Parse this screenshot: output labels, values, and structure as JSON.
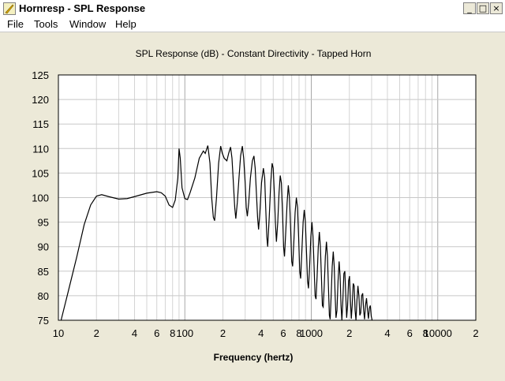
{
  "window": {
    "title": "Hornresp - SPL Response",
    "minimize": "_",
    "maximize": "□",
    "close": "×"
  },
  "menu": [
    {
      "label": "File"
    },
    {
      "label": "Tools"
    },
    {
      "label": "Window"
    },
    {
      "label": "Help"
    }
  ],
  "chart_data": {
    "type": "line",
    "title": "SPL Response (dB) - Constant Directivity - Tapped Horn",
    "xlabel": "Frequency (hertz)",
    "ylabel": "",
    "x_scale": "log",
    "xlim": [
      10,
      20000
    ],
    "ylim": [
      75,
      125
    ],
    "grid": true,
    "y_ticks": [
      125,
      120,
      115,
      110,
      105,
      100,
      95,
      90,
      85,
      80,
      75
    ],
    "x_tick_labels": [
      {
        "f": 10,
        "label": "10"
      },
      {
        "f": 20,
        "label": "2"
      },
      {
        "f": 40,
        "label": "4"
      },
      {
        "f": 60,
        "label": "6"
      },
      {
        "f": 80,
        "label": "8"
      },
      {
        "f": 100,
        "label": "100"
      },
      {
        "f": 200,
        "label": "2"
      },
      {
        "f": 400,
        "label": "4"
      },
      {
        "f": 600,
        "label": "6"
      },
      {
        "f": 800,
        "label": "8"
      },
      {
        "f": 1000,
        "label": "1000"
      },
      {
        "f": 2000,
        "label": "2"
      },
      {
        "f": 4000,
        "label": "4"
      },
      {
        "f": 6000,
        "label": "6"
      },
      {
        "f": 8000,
        "label": "8"
      },
      {
        "f": 10000,
        "label": "10000"
      },
      {
        "f": 20000,
        "label": "2"
      }
    ],
    "series": [
      {
        "color": "#000000",
        "points": [
          [
            10.5,
            75
          ],
          [
            12,
            81
          ],
          [
            14,
            88
          ],
          [
            16,
            94.5
          ],
          [
            18,
            98.5
          ],
          [
            20,
            100.3
          ],
          [
            22,
            100.6
          ],
          [
            25,
            100.2
          ],
          [
            30,
            99.7
          ],
          [
            35,
            99.8
          ],
          [
            40,
            100.2
          ],
          [
            50,
            100.9
          ],
          [
            60,
            101.2
          ],
          [
            65,
            101
          ],
          [
            70,
            100.3
          ],
          [
            75,
            98.5
          ],
          [
            80,
            98
          ],
          [
            84,
            99.5
          ],
          [
            88,
            104
          ],
          [
            90,
            110
          ],
          [
            92,
            108
          ],
          [
            95,
            102
          ],
          [
            100,
            99.8
          ],
          [
            105,
            99.6
          ],
          [
            110,
            101
          ],
          [
            120,
            104
          ],
          [
            130,
            108
          ],
          [
            140,
            109.5
          ],
          [
            145,
            109
          ],
          [
            152,
            110.6
          ],
          [
            158,
            107
          ],
          [
            163,
            100
          ],
          [
            168,
            96
          ],
          [
            172,
            95.3
          ],
          [
            178,
            100
          ],
          [
            185,
            107
          ],
          [
            192,
            110.5
          ],
          [
            198,
            109
          ],
          [
            205,
            108
          ],
          [
            215,
            107.5
          ],
          [
            222,
            109
          ],
          [
            230,
            110.3
          ],
          [
            236,
            108
          ],
          [
            242,
            103
          ],
          [
            248,
            98
          ],
          [
            253,
            95.7
          ],
          [
            260,
            99
          ],
          [
            268,
            104
          ],
          [
            276,
            108.5
          ],
          [
            285,
            110.5
          ],
          [
            292,
            108
          ],
          [
            300,
            103
          ],
          [
            306,
            98
          ],
          [
            312,
            96.2
          ],
          [
            320,
            99
          ],
          [
            330,
            104
          ],
          [
            342,
            107.5
          ],
          [
            352,
            108.5
          ],
          [
            360,
            106
          ],
          [
            368,
            101
          ],
          [
            376,
            96
          ],
          [
            383,
            93.5
          ],
          [
            392,
            97
          ],
          [
            404,
            103
          ],
          [
            418,
            106
          ],
          [
            428,
            104
          ],
          [
            436,
            98
          ],
          [
            445,
            92
          ],
          [
            452,
            90
          ],
          [
            465,
            96
          ],
          [
            478,
            103
          ],
          [
            490,
            107
          ],
          [
            500,
            106
          ],
          [
            510,
            101
          ],
          [
            520,
            95
          ],
          [
            530,
            91
          ],
          [
            543,
            95
          ],
          [
            556,
            101
          ],
          [
            568,
            104.5
          ],
          [
            580,
            103
          ],
          [
            592,
            97
          ],
          [
            604,
            90
          ],
          [
            614,
            88
          ],
          [
            628,
            93
          ],
          [
            644,
            99
          ],
          [
            658,
            102.5
          ],
          [
            672,
            100
          ],
          [
            686,
            94
          ],
          [
            700,
            87
          ],
          [
            712,
            86
          ],
          [
            728,
            91
          ],
          [
            745,
            97
          ],
          [
            762,
            100
          ],
          [
            778,
            98
          ],
          [
            794,
            92
          ],
          [
            810,
            85
          ],
          [
            824,
            83.5
          ],
          [
            842,
            89
          ],
          [
            862,
            95
          ],
          [
            880,
            97.5
          ],
          [
            898,
            95
          ],
          [
            916,
            89
          ],
          [
            934,
            83
          ],
          [
            950,
            81.5
          ],
          [
            970,
            86
          ],
          [
            992,
            92
          ],
          [
            1012,
            95
          ],
          [
            1032,
            92
          ],
          [
            1052,
            86
          ],
          [
            1072,
            80
          ],
          [
            1090,
            79.3
          ],
          [
            1112,
            84
          ],
          [
            1136,
            90
          ],
          [
            1158,
            93
          ],
          [
            1180,
            90
          ],
          [
            1202,
            84
          ],
          [
            1224,
            78
          ],
          [
            1242,
            77.7
          ],
          [
            1266,
            82
          ],
          [
            1292,
            88
          ],
          [
            1318,
            91
          ],
          [
            1342,
            88
          ],
          [
            1366,
            82
          ],
          [
            1390,
            76
          ],
          [
            1410,
            75.2
          ],
          [
            1436,
            80
          ],
          [
            1464,
            86
          ],
          [
            1492,
            89
          ],
          [
            1518,
            86
          ],
          [
            1544,
            80
          ],
          [
            1568,
            75.5
          ],
          [
            1596,
            77
          ],
          [
            1628,
            83
          ],
          [
            1660,
            87
          ],
          [
            1690,
            84
          ],
          [
            1718,
            78
          ],
          [
            1746,
            75
          ],
          [
            1776,
            79
          ],
          [
            1810,
            84.5
          ],
          [
            1842,
            85
          ],
          [
            1874,
            80
          ],
          [
            1904,
            75.5
          ],
          [
            1936,
            78
          ],
          [
            1972,
            83
          ],
          [
            2006,
            84
          ],
          [
            2040,
            79
          ],
          [
            2072,
            75.3
          ],
          [
            2106,
            78
          ],
          [
            2146,
            82.5
          ],
          [
            2184,
            82
          ],
          [
            2220,
            77
          ],
          [
            2256,
            75
          ],
          [
            2296,
            79
          ],
          [
            2338,
            82
          ],
          [
            2380,
            80
          ],
          [
            2420,
            76
          ],
          [
            2460,
            76.5
          ],
          [
            2504,
            80
          ],
          [
            2550,
            80.5
          ],
          [
            2594,
            77
          ],
          [
            2638,
            75.2
          ],
          [
            2684,
            78
          ],
          [
            2734,
            79.5
          ],
          [
            2784,
            77
          ],
          [
            2832,
            75.3
          ],
          [
            2880,
            77.5
          ],
          [
            2930,
            78
          ],
          [
            2980,
            75.8
          ],
          [
            3030,
            75
          ]
        ]
      }
    ]
  }
}
